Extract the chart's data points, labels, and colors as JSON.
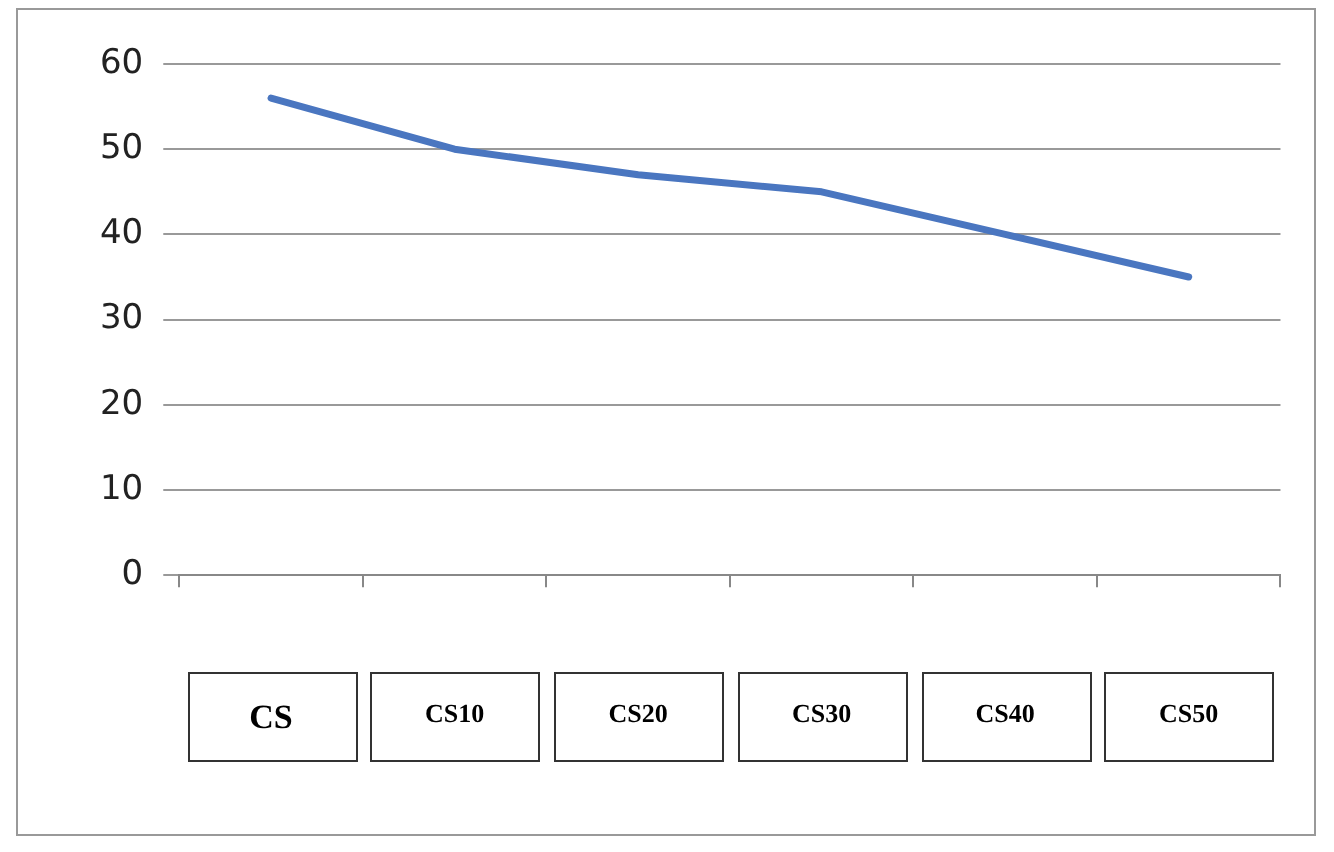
{
  "chart_data": {
    "type": "line",
    "categories": [
      "CS",
      "CS10",
      "CS20",
      "CS30",
      "CS40",
      "CS50"
    ],
    "series": [
      {
        "color": "#4a76c0",
        "values": [
          56,
          50,
          47,
          45,
          40,
          35
        ]
      }
    ],
    "ylim": [
      0,
      60
    ],
    "yticks": [
      0,
      10,
      20,
      30,
      40,
      50,
      60
    ],
    "grid": "y",
    "legend": false,
    "marker": "none",
    "line_style": "solid"
  }
}
